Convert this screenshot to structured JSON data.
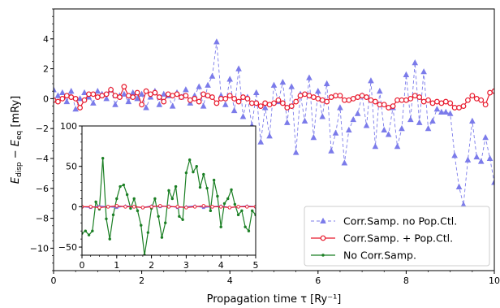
{
  "chart_data": [
    {
      "type": "line",
      "title": "",
      "xlabel": "Propagation time τ [Ry⁻¹]",
      "ylabel": "E_disp − E_eq [mRy]",
      "ylabel_parts": {
        "e1": "E",
        "s1": "disp",
        "minus": " − ",
        "e2": "E",
        "s2": "eq",
        "unit": " [mRy]"
      },
      "xlim": [
        0,
        10
      ],
      "ylim": [
        -11.5,
        6
      ],
      "xticks": [
        0,
        2,
        4,
        6,
        8,
        10
      ],
      "xtick_labels": [
        "0",
        "2",
        "4",
        "6",
        "8",
        "10"
      ],
      "yticks": [
        -10,
        -8,
        -6,
        -4,
        -2,
        0,
        2,
        4
      ],
      "ytick_labels": [
        "−10",
        "−8",
        "−6",
        "−4",
        "−2",
        "0",
        "2",
        "4"
      ],
      "grid": false,
      "legend_position": "bottom-right",
      "series": [
        {
          "name": "Corr.Samp. no Pop.Ctl.",
          "color": "#7b7bea",
          "style": "dashed",
          "marker": "triangle",
          "x": [
            0.0,
            0.1,
            0.2,
            0.3,
            0.4,
            0.5,
            0.6,
            0.7,
            0.8,
            0.9,
            1.0,
            1.1,
            1.2,
            1.3,
            1.4,
            1.5,
            1.6,
            1.7,
            1.8,
            1.9,
            2.0,
            2.1,
            2.2,
            2.3,
            2.4,
            2.5,
            2.6,
            2.7,
            2.8,
            2.9,
            3.0,
            3.1,
            3.2,
            3.3,
            3.4,
            3.5,
            3.6,
            3.7,
            3.8,
            3.9,
            4.0,
            4.1,
            4.2,
            4.3,
            4.4,
            4.5,
            4.6,
            4.7,
            4.8,
            4.9,
            5.0,
            5.1,
            5.2,
            5.3,
            5.4,
            5.5,
            5.6,
            5.7,
            5.8,
            5.9,
            6.0,
            6.1,
            6.2,
            6.3,
            6.4,
            6.5,
            6.6,
            6.7,
            6.8,
            6.9,
            7.0,
            7.1,
            7.2,
            7.3,
            7.4,
            7.5,
            7.6,
            7.7,
            7.8,
            7.9,
            8.0,
            8.1,
            8.2,
            8.3,
            8.4,
            8.5,
            8.6,
            8.7,
            8.8,
            8.9,
            9.0,
            9.1,
            9.2,
            9.3,
            9.4,
            9.5,
            9.6,
            9.7,
            9.8,
            9.9,
            10.0
          ],
          "y": [
            0.6,
            0.2,
            0.4,
            -0.2,
            0.5,
            -0.7,
            0.0,
            0.4,
            0.1,
            -0.3,
            0.5,
            0.3,
            0.0,
            0.6,
            -0.4,
            0.2,
            0.3,
            -0.2,
            0.4,
            0.0,
            0.3,
            -0.6,
            0.1,
            0.5,
            -0.4,
            0.3,
            0.2,
            -0.5,
            0.4,
            0.1,
            0.6,
            -0.3,
            0.2,
            0.8,
            -0.5,
            0.9,
            1.5,
            3.8,
            0.2,
            -0.4,
            1.3,
            -0.8,
            2.0,
            -1.2,
            0.1,
            -1.8,
            0.4,
            -2.9,
            -0.6,
            -2.5,
            0.9,
            -0.2,
            1.1,
            -1.6,
            0.8,
            -3.6,
            0.3,
            -1.5,
            1.4,
            -2.6,
            0.5,
            -1.2,
            1.0,
            -3.5,
            -2.3,
            -0.6,
            -4.3,
            -2.1,
            -1.4,
            -1.0,
            0.2,
            -1.8,
            1.2,
            -3.2,
            0.5,
            -2.1,
            -2.4,
            -0.6,
            -3.2,
            -2.0,
            1.6,
            -1.4,
            2.4,
            -1.6,
            1.8,
            -2.0,
            -1.5,
            -0.7,
            -0.9,
            -0.9,
            -1.0,
            -3.8,
            -5.9,
            -7.1,
            -4.1,
            -1.5,
            -3.9,
            -4.2,
            -2.6,
            -4.0,
            -5.6
          ]
        },
        {
          "name": "Corr.Samp. + Pop.Ctl.",
          "color": "#e8192c",
          "style": "solid",
          "marker": "circle-open",
          "x": [
            0.0,
            0.1,
            0.2,
            0.3,
            0.4,
            0.5,
            0.6,
            0.7,
            0.8,
            0.9,
            1.0,
            1.1,
            1.2,
            1.3,
            1.4,
            1.5,
            1.6,
            1.7,
            1.8,
            1.9,
            2.0,
            2.1,
            2.2,
            2.3,
            2.4,
            2.5,
            2.6,
            2.7,
            2.8,
            2.9,
            3.0,
            3.1,
            3.2,
            3.3,
            3.4,
            3.5,
            3.6,
            3.7,
            3.8,
            3.9,
            4.0,
            4.1,
            4.2,
            4.3,
            4.4,
            4.5,
            4.6,
            4.7,
            4.8,
            4.9,
            5.0,
            5.1,
            5.2,
            5.3,
            5.4,
            5.5,
            5.6,
            5.7,
            5.8,
            5.9,
            6.0,
            6.1,
            6.2,
            6.3,
            6.4,
            6.5,
            6.6,
            6.7,
            6.8,
            6.9,
            7.0,
            7.1,
            7.2,
            7.3,
            7.4,
            7.5,
            7.6,
            7.7,
            7.8,
            7.9,
            8.0,
            8.1,
            8.2,
            8.3,
            8.4,
            8.5,
            8.6,
            8.7,
            8.8,
            8.9,
            9.0,
            9.1,
            9.2,
            9.3,
            9.4,
            9.5,
            9.6,
            9.7,
            9.8,
            9.9,
            10.0
          ],
          "y": [
            -0.1,
            -0.2,
            0.0,
            0.2,
            0.1,
            0.0,
            -0.6,
            -0.1,
            0.3,
            0.3,
            0.1,
            0.2,
            0.3,
            0.6,
            0.2,
            0.1,
            0.8,
            0.2,
            0.1,
            0.4,
            -0.4,
            0.5,
            0.3,
            0.4,
            0.1,
            -0.2,
            0.3,
            0.2,
            0.3,
            0.1,
            0.2,
            -0.1,
            0.0,
            -0.2,
            0.3,
            0.2,
            0.1,
            -0.3,
            0.0,
            0.0,
            0.2,
            0.0,
            -0.2,
            0.1,
            0.0,
            -0.3,
            -0.3,
            -0.5,
            -0.3,
            -0.4,
            -0.3,
            -0.1,
            -0.3,
            -0.6,
            -0.5,
            -0.2,
            0.2,
            0.3,
            0.2,
            0.1,
            0.0,
            -0.1,
            -0.2,
            0.1,
            0.2,
            0.2,
            -0.1,
            -0.1,
            0.0,
            0.1,
            0.2,
            0.1,
            -0.1,
            -0.2,
            -0.4,
            -0.4,
            -0.6,
            -0.5,
            -0.1,
            -0.1,
            -0.1,
            0.0,
            0.2,
            0.1,
            -0.2,
            -0.1,
            -0.3,
            -0.2,
            -0.3,
            -0.2,
            -0.3,
            -0.6,
            -0.6,
            -0.5,
            -0.1,
            0.2,
            0.0,
            -0.1,
            -0.4,
            0.4,
            0.5
          ]
        }
      ]
    },
    {
      "type": "line",
      "title": "",
      "xlabel": "",
      "ylabel": "",
      "xlim": [
        0,
        5
      ],
      "ylim": [
        -60,
        100
      ],
      "xticks": [
        0,
        1,
        2,
        3,
        4,
        5
      ],
      "xtick_labels": [
        "0",
        "1",
        "2",
        "3",
        "4",
        "5"
      ],
      "yticks": [
        -50,
        0,
        50,
        100
      ],
      "ytick_labels": [
        "−50",
        "0",
        "50",
        "100"
      ],
      "grid": false,
      "series": [
        {
          "name": "No Corr.Samp.",
          "color": "#1b7f24",
          "style": "solid",
          "marker": "dot",
          "x": [
            0.0,
            0.1,
            0.2,
            0.3,
            0.4,
            0.5,
            0.6,
            0.7,
            0.8,
            0.9,
            1.0,
            1.1,
            1.2,
            1.3,
            1.4,
            1.5,
            1.6,
            1.7,
            1.8,
            1.9,
            2.0,
            2.1,
            2.2,
            2.3,
            2.4,
            2.5,
            2.6,
            2.7,
            2.8,
            2.9,
            3.0,
            3.1,
            3.2,
            3.3,
            3.4,
            3.5,
            3.6,
            3.7,
            3.8,
            3.9,
            4.0,
            4.1,
            4.2,
            4.3,
            4.4,
            4.5,
            4.6,
            4.7,
            4.8,
            4.9,
            5.0
          ],
          "y": [
            -33,
            -30,
            -35,
            -30,
            6,
            -3,
            60,
            -15,
            -40,
            -10,
            10,
            25,
            27,
            15,
            -2,
            10,
            -5,
            -23,
            -60,
            -32,
            -2,
            10,
            -12,
            -38,
            -20,
            20,
            10,
            25,
            -12,
            -16,
            42,
            58,
            43,
            50,
            24,
            40,
            23,
            -5,
            33,
            13,
            -25,
            4,
            10,
            21,
            3,
            -10,
            -5,
            -25,
            -30,
            -5,
            -10
          ]
        },
        {
          "name": "",
          "color": "#7b7bea",
          "style": "solid",
          "marker": "small-triangle",
          "x": [
            0.0,
            0.25,
            0.5,
            0.75,
            1.0,
            1.25,
            1.5,
            1.75,
            2.0,
            2.25,
            2.5,
            2.75,
            3.0,
            3.25,
            3.5,
            3.75,
            4.0,
            4.25,
            4.5,
            4.75,
            5.0
          ],
          "y": [
            0,
            -1,
            1,
            0,
            -1,
            1,
            0,
            -1,
            1,
            0,
            1,
            -1,
            0,
            1,
            -1,
            0,
            1,
            -1,
            0,
            1,
            0
          ]
        },
        {
          "name": "",
          "color": "#e8192c",
          "style": "solid",
          "marker": "small-circle",
          "x": [
            0.0,
            0.25,
            0.5,
            0.75,
            1.0,
            1.25,
            1.5,
            1.75,
            2.0,
            2.25,
            2.5,
            2.75,
            3.0,
            3.25,
            3.5,
            3.75,
            4.0,
            4.25,
            4.5,
            4.75,
            5.0
          ],
          "y": [
            0,
            0,
            -1,
            0,
            1,
            0,
            0,
            -1,
            0,
            1,
            0,
            0,
            -1,
            0,
            1,
            0,
            0,
            -1,
            0,
            0,
            0
          ]
        }
      ]
    }
  ],
  "legend": {
    "items": [
      {
        "label": "Corr.Samp. no Pop.Ctl.",
        "color": "#7b7bea",
        "style": "dashed",
        "marker": "triangle"
      },
      {
        "label": "Corr.Samp. + Pop.Ctl.",
        "color": "#e8192c",
        "style": "solid",
        "marker": "circle-open"
      },
      {
        "label": "No Corr.Samp.",
        "color": "#1b7f24",
        "style": "solid",
        "marker": "dot"
      }
    ]
  }
}
